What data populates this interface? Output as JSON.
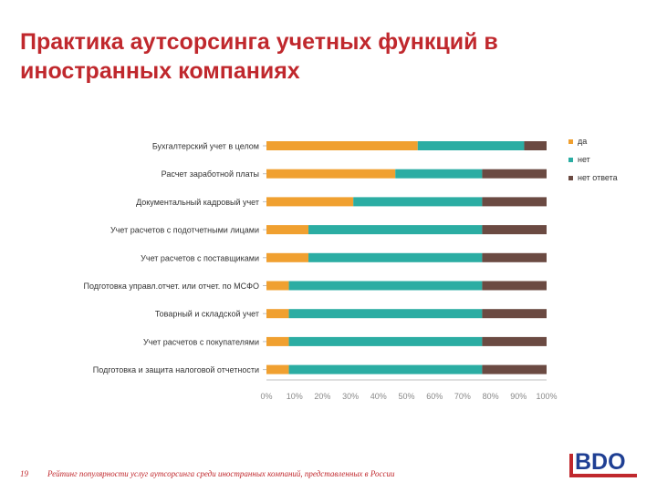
{
  "slide": {
    "title": "Практика аутсорсинга учетных функций в иностранных компаниях",
    "page_number": "19",
    "footnote": "Рейтинг популярности услуг аутсорсинга среди иностранных компаний, представленных в России",
    "logo": "BDO"
  },
  "colors": {
    "title": "#c0282d",
    "da": "#f0a030",
    "net": "#2bada3",
    "net_otveta": "#6b4a42",
    "logo_text": "#1f3f93"
  },
  "chart_data": {
    "type": "bar",
    "orientation": "horizontal",
    "stacked": true,
    "title": "",
    "xlabel": "",
    "ylabel": "",
    "xlim": [
      0,
      100
    ],
    "x_ticks": [
      "0%",
      "10%",
      "20%",
      "30%",
      "40%",
      "50%",
      "60%",
      "70%",
      "80%",
      "90%",
      "100%"
    ],
    "categories": [
      "Бухгалтерский учет в целом",
      "Расчет заработной платы",
      "Документальный кадровый учет",
      "Учет расчетов с подотчетными лицами",
      "Учет расчетов с поставщиками",
      "Подготовка управл.отчет. или отчет. по МСФО",
      "Товарный и складской учет",
      "Учет расчетов с покупателями",
      "Подготовка и защита налоговой отчетности"
    ],
    "series": [
      {
        "name": "да",
        "values": [
          54,
          46,
          31,
          15,
          15,
          8,
          8,
          8,
          8
        ]
      },
      {
        "name": "нет",
        "values": [
          38,
          31,
          46,
          62,
          62,
          69,
          69,
          69,
          69
        ]
      },
      {
        "name": "нет ответа",
        "values": [
          8,
          23,
          23,
          23,
          23,
          23,
          23,
          23,
          23
        ]
      }
    ],
    "legend_position": "right",
    "grid": false
  }
}
